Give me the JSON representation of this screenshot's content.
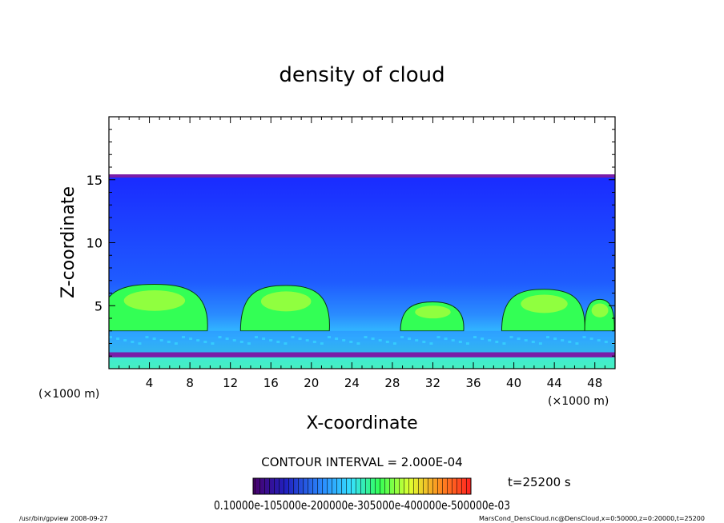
{
  "chart_data": {
    "type": "heatmap",
    "title": "density of cloud",
    "xlabel": "X-coordinate",
    "ylabel": "Z-coordinate",
    "x_units": "(×1000 m)",
    "y_units": "(×1000 m)",
    "xlim": [
      0,
      50
    ],
    "ylim": [
      0,
      20
    ],
    "x_ticks": [
      4,
      8,
      12,
      16,
      20,
      24,
      28,
      32,
      36,
      40,
      44,
      48
    ],
    "y_ticks": [
      5,
      10,
      15
    ],
    "contour_interval_text": "CONTOUR INTERVAL = 2.000E-04",
    "time_text": "t=25200 s",
    "colorbar_labels_text": "0.10000e-105000e-200000e-305000e-400000e-500000e-03",
    "colorbar_levels": [
      0.0001,
      0.00015,
      0.0002,
      0.0003,
      0.0004,
      0.0005,
      0.005
    ],
    "cloud_top_z": 15.2,
    "cloud_lobes": [
      {
        "x_center": 4.5,
        "top_z": 6.7
      },
      {
        "x_center": 17.5,
        "top_z": 6.6
      },
      {
        "x_center": 32.0,
        "top_z": 5.3
      },
      {
        "x_center": 43.0,
        "top_z": 6.3
      },
      {
        "x_center": 48.5,
        "top_z": 5.5
      }
    ],
    "colors": {
      "purple": "#7a1ca8",
      "deep_blue": "#1133ee",
      "mid_blue": "#2a8cff",
      "cyan": "#38d8ff",
      "green": "#33ff55",
      "yellow_green": "#a8ff3a"
    }
  },
  "footer": {
    "left": "/usr/bin/gpview   2008-09-27",
    "right": "MarsCond_DensCloud.nc@DensCloud,x=0:50000,z=0:20000,t=25200"
  }
}
